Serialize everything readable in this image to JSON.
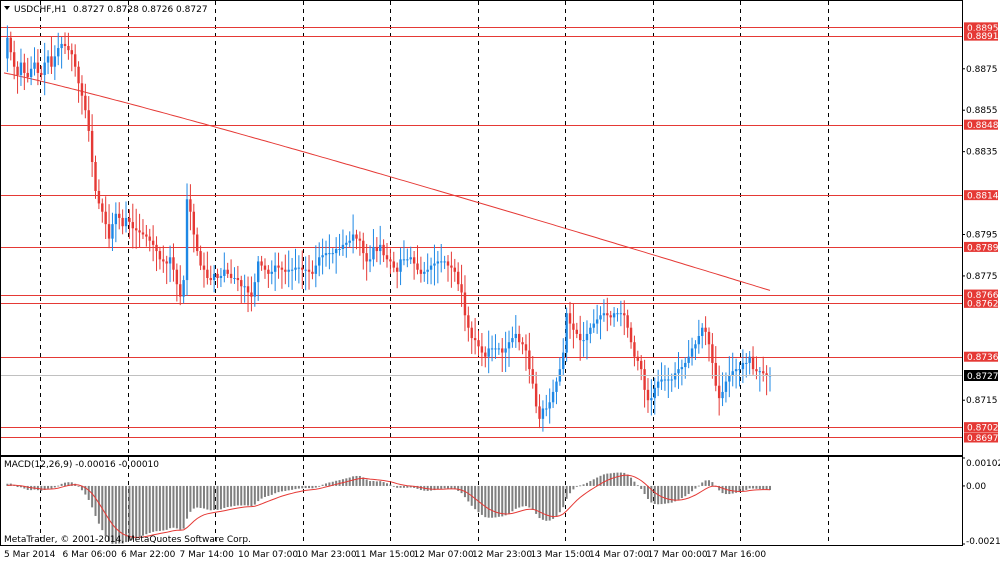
{
  "header": {
    "symbol_label": "USDCHF,H1",
    "ohlc_label": "0.8727 0.8728 0.8726 0.8727",
    "macd_label": "MACD(12,26,9) -0.00016 -0.00010",
    "copyright": "MetaTrader, © 2001-2014, MetaQuotes Software Corp."
  },
  "colors": {
    "bull": "#1e88e5",
    "bear": "#e53935",
    "level": "#e53935",
    "ma": "#e53935",
    "macd_bar": "#7f7f7f",
    "signal": "#e53935",
    "grid": "#000000",
    "current": "#000000"
  },
  "chart_data": [
    {
      "type": "candlestick",
      "symbol": "USDCHF",
      "timeframe": "H1",
      "ylim": [
        0.869,
        0.89
      ],
      "y_ticks": [
        "0.8875",
        "0.8855",
        "0.8835",
        "0.8795",
        "0.8775",
        "0.8715"
      ],
      "x_ticks": [
        "5 Mar 2014",
        "6 Mar 06:00",
        "6 Mar 22:00",
        "7 Mar 14:00",
        "10 Mar 07:00",
        "10 Mar 23:00",
        "11 Mar 15:00",
        "12 Mar 07:00",
        "12 Mar 23:00",
        "13 Mar 15:00",
        "14 Mar 07:00",
        "17 Mar 00:00",
        "17 Mar 16:00"
      ],
      "levels": [
        {
          "value": 0.8895,
          "label": "0.8895"
        },
        {
          "value": 0.8891,
          "label": "0.8891"
        },
        {
          "value": 0.8848,
          "label": "0.8848"
        },
        {
          "value": 0.8814,
          "label": "0.8814"
        },
        {
          "value": 0.8789,
          "label": "0.8789"
        },
        {
          "value": 0.8766,
          "label": "0.8766"
        },
        {
          "value": 0.8762,
          "label": "0.8762"
        },
        {
          "value": 0.8736,
          "label": "0.8736"
        },
        {
          "value": 0.8702,
          "label": "0.8702"
        },
        {
          "value": 0.8697,
          "label": "0.8697"
        }
      ],
      "current_price": {
        "value": 0.8727,
        "label": "0.8727"
      },
      "closes": [
        0.888,
        0.889,
        0.8883,
        0.8876,
        0.8872,
        0.8878,
        0.8873,
        0.8871,
        0.8875,
        0.8878,
        0.8873,
        0.8872,
        0.8878,
        0.8881,
        0.8876,
        0.8881,
        0.8885,
        0.8887,
        0.8886,
        0.8884,
        0.8882,
        0.8876,
        0.8868,
        0.8862,
        0.8855,
        0.8845,
        0.883,
        0.8816,
        0.881,
        0.8806,
        0.88,
        0.8793,
        0.88,
        0.8805,
        0.8803,
        0.8799,
        0.8803,
        0.8801,
        0.8798,
        0.8797,
        0.8796,
        0.8795,
        0.8794,
        0.8792,
        0.879,
        0.8787,
        0.8783,
        0.8782,
        0.8781,
        0.8784,
        0.8778,
        0.8771,
        0.8765,
        0.8773,
        0.8812,
        0.8806,
        0.8795,
        0.8787,
        0.878,
        0.8778,
        0.8774,
        0.8773,
        0.8776,
        0.8774,
        0.8775,
        0.8778,
        0.8776,
        0.8774,
        0.8774,
        0.8773,
        0.877,
        0.877,
        0.8767,
        0.8765,
        0.8772,
        0.8782,
        0.878,
        0.8778,
        0.8776,
        0.8777,
        0.878,
        0.8779,
        0.8778,
        0.8777,
        0.8778,
        0.8778,
        0.8779,
        0.8779,
        0.8778,
        0.8778,
        0.8777,
        0.8776,
        0.878,
        0.8784,
        0.8785,
        0.8786,
        0.8786,
        0.8786,
        0.8788,
        0.8788,
        0.879,
        0.8791,
        0.8792,
        0.8795,
        0.8793,
        0.8792,
        0.8786,
        0.8782,
        0.8783,
        0.8789,
        0.8787,
        0.879,
        0.8785,
        0.8783,
        0.8782,
        0.8779,
        0.8777,
        0.8783,
        0.8783,
        0.8783,
        0.8784,
        0.8781,
        0.8778,
        0.8776,
        0.8777,
        0.8778,
        0.878,
        0.8781,
        0.8782,
        0.8782,
        0.8782,
        0.878,
        0.8779,
        0.8777,
        0.8771,
        0.8767,
        0.8756,
        0.875,
        0.8745,
        0.8744,
        0.8741,
        0.8738,
        0.8736,
        0.874,
        0.874,
        0.874,
        0.874,
        0.8738,
        0.874,
        0.8743,
        0.8745,
        0.8747,
        0.8743,
        0.8742,
        0.8739,
        0.873,
        0.8723,
        0.8712,
        0.8706,
        0.8711,
        0.8711,
        0.8714,
        0.8719,
        0.8724,
        0.873,
        0.8738,
        0.8757,
        0.8752,
        0.8749,
        0.8747,
        0.8744,
        0.8744,
        0.8747,
        0.875,
        0.8752,
        0.8754,
        0.8756,
        0.8757,
        0.8756,
        0.8755,
        0.8757,
        0.8757,
        0.8757,
        0.8756,
        0.875,
        0.8743,
        0.8736,
        0.8734,
        0.873,
        0.872,
        0.8715,
        0.8716,
        0.8721,
        0.8724,
        0.8725,
        0.8725,
        0.8725,
        0.8725,
        0.8728,
        0.873,
        0.8731,
        0.8733,
        0.8736,
        0.874,
        0.8742,
        0.8746,
        0.875,
        0.8748,
        0.8742,
        0.8733,
        0.8722,
        0.8716,
        0.8719,
        0.8724,
        0.8727,
        0.8729,
        0.873,
        0.873,
        0.8733,
        0.8733,
        0.8736,
        0.873,
        0.8729,
        0.8729,
        0.8728,
        0.8727,
        0.8727
      ]
    },
    {
      "type": "bar",
      "title": "MACD(12,26,9)",
      "values_shown": [
        "-0.00016",
        "-0.00010"
      ],
      "ylim": [
        -0.00212,
        0.00102
      ],
      "y_ticks": [
        "0.00102",
        "0.00",
        "-0.00212"
      ]
    }
  ]
}
